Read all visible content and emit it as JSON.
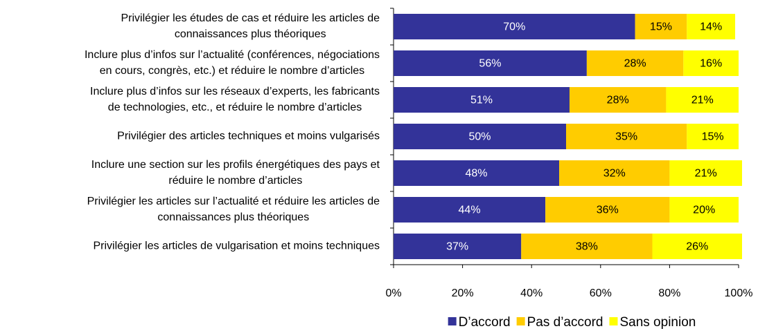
{
  "chart_data": {
    "type": "stacked_barh",
    "categories": [
      [
        "Privilégier les études de cas et réduire les articles de",
        "connaissances plus théoriques"
      ],
      [
        "Inclure plus d’infos sur l’actualité (conférences, négociations",
        "en cours, congrès, etc.) et réduire le nombre d’articles"
      ],
      [
        "Inclure plus d’infos sur les réseaux d’experts, les fabricants",
        "de technologies, etc., et réduire le nombre d’articles"
      ],
      [
        "Privilégier des articles techniques et moins vulgarisés"
      ],
      [
        "Inclure une section sur les profils énergétiques des pays et",
        "réduire le nombre d’articles"
      ],
      [
        "Privilégier les articles sur l’actualité et réduire les articles de",
        "connaissances plus théoriques"
      ],
      [
        "Privilégier les articles de vulgarisation et moins techniques"
      ]
    ],
    "series": [
      {
        "name": "D’accord",
        "color": "#333399",
        "label_color": "#ffffff",
        "values": [
          70,
          56,
          51,
          50,
          48,
          44,
          37
        ],
        "value_labels": [
          "70%",
          "56%",
          "51%",
          "50%",
          "48%",
          "44%",
          "37%"
        ]
      },
      {
        "name": "Pas d’accord",
        "color": "#ffcc00",
        "label_color": "#000000",
        "values": [
          15,
          28,
          28,
          35,
          32,
          36,
          38
        ],
        "value_labels": [
          "15%",
          "28%",
          "28%",
          "35%",
          "32%",
          "36%",
          "38%"
        ]
      },
      {
        "name": "Sans opinion",
        "color": "#ffff00",
        "label_color": "#000000",
        "values": [
          14,
          16,
          21,
          15,
          21,
          20,
          26
        ],
        "value_labels": [
          "14%",
          "16%",
          "21%",
          "15%",
          "21%",
          "20%",
          "26%"
        ]
      }
    ],
    "xlim": [
      0,
      100
    ],
    "xticks": [
      {
        "value": 0,
        "label": "0%"
      },
      {
        "value": 20,
        "label": "20%"
      },
      {
        "value": 40,
        "label": "40%"
      },
      {
        "value": 60,
        "label": "60%"
      },
      {
        "value": 80,
        "label": "80%"
      },
      {
        "value": 100,
        "label": "100%"
      }
    ],
    "legend": "bottom"
  }
}
